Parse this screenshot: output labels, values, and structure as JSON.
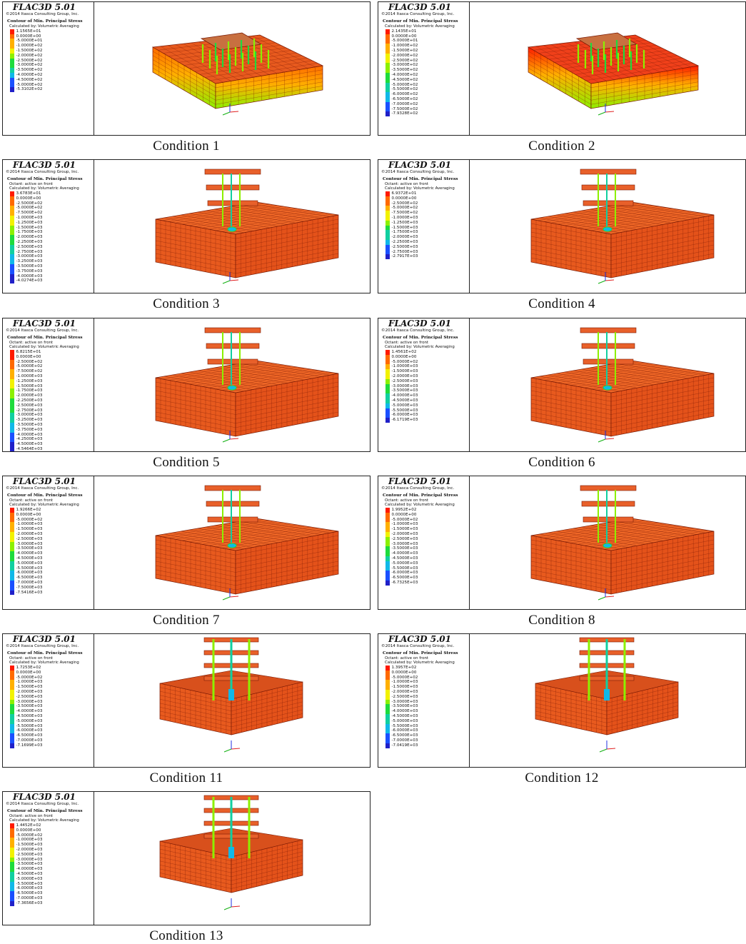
{
  "software_title": "FLAC3D 5.01",
  "copyright": "©2014 Itasca Consulting Group, Inc.",
  "contour_title": "Contour of Min. Principal Stress",
  "octant_text": "Octant: active on front",
  "calc_text": "Calculated by: Volumetric Averaging",
  "colors": {
    "red": "#ff1a00",
    "orange": "#ff6a00",
    "amber": "#ffb000",
    "yellow": "#f2f200",
    "lime": "#8cf000",
    "green": "#1edb3c",
    "teal": "#10cfa0",
    "cyan": "#10b8e8",
    "blue": "#1a50ff",
    "navy": "#2020c8",
    "model_orange": "#e85a1e",
    "mesh_dark": "#7a1a05"
  },
  "panels": [
    {
      "caption": "Condition 1",
      "variant": "flat",
      "legend": [
        "1.1565E+01",
        "0.0000E+00",
        "-5.0000E+01",
        "-1.0000E+02",
        "-1.5000E+02",
        "-2.0000E+02",
        "-2.5000E+02",
        "-3.0000E+02",
        "-3.5000E+02",
        "-4.0000E+02",
        "-4.5000E+02",
        "-5.0000E+02",
        "-5.3102E+02"
      ]
    },
    {
      "caption": "Condition 2",
      "variant": "flat",
      "legend": [
        "2.1435E+01",
        "0.0000E+00",
        "-5.0000E+01",
        "-1.0000E+02",
        "-1.5000E+02",
        "-2.0000E+02",
        "-2.5000E+02",
        "-3.0000E+02",
        "-3.5000E+02",
        "-4.0000E+02",
        "-4.5000E+02",
        "-5.0000E+02",
        "-5.5000E+02",
        "-6.0000E+02",
        "-6.5000E+02",
        "-7.0000E+02",
        "-7.5000E+02",
        "-7.9328E+02"
      ]
    },
    {
      "caption": "Condition 3",
      "variant": "block",
      "octant": true,
      "legend": [
        "3.6783E+01",
        "0.0000E+00",
        "-2.5000E+02",
        "-5.0000E+02",
        "-7.5000E+02",
        "-1.0000E+03",
        "-1.2500E+03",
        "-1.5000E+03",
        "-1.7500E+03",
        "-2.0000E+03",
        "-2.2500E+03",
        "-2.5000E+03",
        "-2.7500E+03",
        "-3.0000E+03",
        "-3.2500E+03",
        "-3.5000E+03",
        "-3.7500E+03",
        "-4.0000E+03",
        "-4.0274E+03"
      ]
    },
    {
      "caption": "Condition 4",
      "variant": "block",
      "octant": true,
      "legend": [
        "6.9372E+01",
        "0.0000E+00",
        "-2.5000E+02",
        "-5.0000E+02",
        "-7.5000E+02",
        "-1.0000E+03",
        "-1.2500E+03",
        "-1.5000E+03",
        "-1.7500E+03",
        "-2.0000E+03",
        "-2.2500E+03",
        "-2.5000E+03",
        "-2.7500E+03",
        "-2.7917E+03"
      ]
    },
    {
      "caption": "Condition 5",
      "variant": "block",
      "octant": true,
      "legend": [
        "6.8215E+01",
        "0.0000E+00",
        "-2.5000E+02",
        "-5.0000E+02",
        "-7.5000E+02",
        "-1.0000E+03",
        "-1.2500E+03",
        "-1.5000E+03",
        "-1.7500E+03",
        "-2.0000E+03",
        "-2.2500E+03",
        "-2.5000E+03",
        "-2.7500E+03",
        "-3.0000E+03",
        "-3.2500E+03",
        "-3.5000E+03",
        "-3.7500E+03",
        "-4.0000E+03",
        "-4.2500E+03",
        "-4.5000E+03",
        "-4.5464E+03"
      ]
    },
    {
      "caption": "Condition 6",
      "variant": "block",
      "octant": true,
      "legend": [
        "1.4561E+02",
        "0.0000E+00",
        "-5.0000E+02",
        "-1.0000E+03",
        "-1.5000E+03",
        "-2.0000E+03",
        "-2.5000E+03",
        "-3.0000E+03",
        "-3.5000E+03",
        "-4.0000E+03",
        "-4.5000E+03",
        "-5.0000E+03",
        "-5.5000E+03",
        "-6.0000E+03",
        "-6.1719E+03"
      ]
    },
    {
      "caption": "Condition 7",
      "variant": "block",
      "octant": true,
      "legend": [
        "1.9266E+02",
        "0.0000E+00",
        "-5.0000E+02",
        "-1.0000E+03",
        "-1.5000E+03",
        "-2.0000E+03",
        "-2.5000E+03",
        "-3.0000E+03",
        "-3.5000E+03",
        "-4.0000E+03",
        "-4.5000E+03",
        "-5.0000E+03",
        "-5.5000E+03",
        "-6.0000E+03",
        "-6.5000E+03",
        "-7.0000E+03",
        "-7.5000E+03",
        "-7.5416E+03"
      ]
    },
    {
      "caption": "Condition 8",
      "variant": "block",
      "octant": true,
      "legend": [
        "1.9952E+02",
        "0.0000E+00",
        "-5.0000E+02",
        "-1.0000E+03",
        "-1.5000E+03",
        "-2.0000E+03",
        "-2.5000E+03",
        "-3.0000E+03",
        "-3.5000E+03",
        "-4.0000E+03",
        "-4.5000E+03",
        "-5.0000E+03",
        "-5.5000E+03",
        "-6.0000E+03",
        "-6.5000E+03",
        "-6.7325E+03"
      ]
    },
    {
      "caption": "Condition 11",
      "variant": "cut",
      "octant": true,
      "legend": [
        "1.7253E+02",
        "0.0000E+00",
        "-5.0000E+02",
        "-1.0000E+03",
        "-1.5000E+03",
        "-2.0000E+03",
        "-2.5000E+03",
        "-3.0000E+03",
        "-3.5000E+03",
        "-4.0000E+03",
        "-4.5000E+03",
        "-5.0000E+03",
        "-5.5000E+03",
        "-6.0000E+03",
        "-6.5000E+03",
        "-7.0000E+03",
        "-7.1699E+03"
      ]
    },
    {
      "caption": "Condition 12",
      "variant": "cut",
      "octant": true,
      "legend": [
        "1.3957E+02",
        "0.0000E+00",
        "-5.0000E+02",
        "-1.0000E+03",
        "-1.5000E+03",
        "-2.0000E+03",
        "-2.5000E+03",
        "-3.0000E+03",
        "-3.5000E+03",
        "-4.0000E+03",
        "-4.5000E+03",
        "-5.0000E+03",
        "-5.5000E+03",
        "-6.0000E+03",
        "-6.5000E+03",
        "-7.0000E+03",
        "-7.0419E+03"
      ]
    },
    {
      "caption": "Condition 13",
      "variant": "cut",
      "octant": true,
      "legend": [
        "1.4452E+02",
        "0.0000E+00",
        "-5.0000E+02",
        "-1.0000E+03",
        "-1.5000E+03",
        "-2.0000E+03",
        "-2.5000E+03",
        "-3.0000E+03",
        "-3.5000E+03",
        "-4.0000E+03",
        "-4.5000E+03",
        "-5.0000E+03",
        "-5.5000E+03",
        "-6.0000E+03",
        "-6.5000E+03",
        "-7.0000E+03",
        "-7.3656E+03"
      ]
    }
  ]
}
